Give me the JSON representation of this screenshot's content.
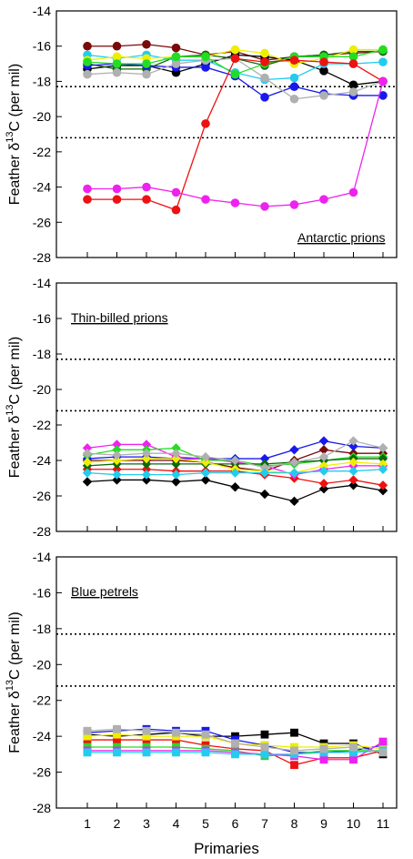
{
  "chart_data": [
    {
      "type": "line",
      "panel_label": "Antarctic prions",
      "ylabel_pre": "Feather δ",
      "ylabel_sup": "13",
      "ylabel_post": "C (per mil)",
      "ylim": [
        -28,
        -14
      ],
      "yticks": [
        -28,
        -26,
        -24,
        -22,
        -20,
        -18,
        -16,
        -14
      ],
      "reference_lines": [
        -18.3,
        -21.2
      ],
      "grid": false,
      "series": [
        {
          "color": "#7a0a0a",
          "marker": "circle",
          "values": [
            -16.0,
            -16.0,
            -15.9,
            -16.1,
            -16.5,
            -16.3,
            -16.8,
            -16.6,
            -16.5,
            -16.4,
            -16.3
          ]
        },
        {
          "color": "#000000",
          "marker": "circle",
          "values": [
            -17.3,
            -17.1,
            -17.1,
            -17.5,
            -17.0,
            -16.5,
            -16.6,
            -16.8,
            -17.4,
            -18.2,
            -18.0
          ]
        },
        {
          "color": "#0a6a0a",
          "marker": "circle",
          "values": [
            -17.0,
            -17.3,
            -17.3,
            -16.6,
            -16.5,
            -16.7,
            -17.1,
            -16.6,
            -16.5,
            -16.3,
            -16.3
          ]
        },
        {
          "color": "#1818ee",
          "marker": "circle",
          "values": [
            -17.1,
            -17.0,
            -17.1,
            -17.2,
            -17.2,
            -17.7,
            -18.9,
            -18.3,
            -18.7,
            -18.8,
            -18.8
          ]
        },
        {
          "color": "#22ccee",
          "marker": "circle",
          "values": [
            -16.5,
            -16.7,
            -16.5,
            -16.8,
            -16.8,
            -17.5,
            -17.9,
            -17.8,
            -17.0,
            -17.0,
            -16.9
          ]
        },
        {
          "color": "#b0b0b0",
          "marker": "circle",
          "values": [
            -17.6,
            -17.5,
            -17.6,
            -17.0,
            -16.8,
            -16.7,
            -17.8,
            -19.0,
            -18.8,
            -18.6,
            -18.0
          ]
        },
        {
          "color": "#eeee00",
          "marker": "circle",
          "values": [
            -16.8,
            -16.6,
            -16.7,
            -16.6,
            -16.6,
            -16.2,
            -16.4,
            -17.0,
            -16.7,
            -16.2,
            -16.2
          ]
        },
        {
          "color": "#22dd22",
          "marker": "circle",
          "values": [
            -16.9,
            -17.0,
            -17.0,
            -16.6,
            -16.6,
            -17.6,
            -17.0,
            -16.6,
            -16.6,
            -16.6,
            -16.2
          ]
        },
        {
          "color": "#ee1111",
          "marker": "circle",
          "values": [
            -24.7,
            -24.7,
            -24.7,
            -25.3,
            -20.4,
            -16.7,
            -16.9,
            -16.8,
            -16.9,
            -17.0,
            -18.0
          ]
        },
        {
          "color": "#ee22ee",
          "marker": "circle",
          "values": [
            -24.1,
            -24.1,
            -24.0,
            -24.3,
            -24.7,
            -24.9,
            -25.1,
            -25.0,
            -24.7,
            -24.3,
            -18.0
          ]
        }
      ]
    },
    {
      "type": "line",
      "panel_label": "Thin-billed prions",
      "ylabel_pre": "Feather δ",
      "ylabel_sup": "13",
      "ylabel_post": "C (per mil)",
      "ylim": [
        -28,
        -14
      ],
      "yticks": [
        -28,
        -26,
        -24,
        -22,
        -20,
        -18,
        -16,
        -14
      ],
      "reference_lines": [
        -18.3,
        -21.2
      ],
      "grid": false,
      "series": [
        {
          "color": "#000000",
          "marker": "diamond",
          "values": [
            -25.2,
            -25.1,
            -25.1,
            -25.2,
            -25.1,
            -25.5,
            -25.9,
            -26.3,
            -25.6,
            -25.4,
            -25.7
          ]
        },
        {
          "color": "#7a0a0a",
          "marker": "diamond",
          "values": [
            -24.0,
            -24.0,
            -24.0,
            -24.0,
            -24.1,
            -24.4,
            -24.6,
            -24.0,
            -23.4,
            -23.6,
            -23.6
          ]
        },
        {
          "color": "#1818ee",
          "marker": "diamond",
          "values": [
            -23.9,
            -23.8,
            -23.8,
            -23.9,
            -23.9,
            -23.9,
            -23.9,
            -23.4,
            -22.9,
            -23.2,
            -23.3
          ]
        },
        {
          "color": "#ee1111",
          "marker": "diamond",
          "values": [
            -24.5,
            -24.5,
            -24.5,
            -24.6,
            -24.6,
            -24.6,
            -24.8,
            -25.0,
            -25.3,
            -25.1,
            -25.4
          ]
        },
        {
          "color": "#ee22ee",
          "marker": "diamond",
          "values": [
            -23.3,
            -23.1,
            -23.1,
            -23.8,
            -23.9,
            -24.1,
            -24.3,
            -24.8,
            -24.5,
            -24.3,
            -24.3
          ]
        },
        {
          "color": "#22dd22",
          "marker": "diamond",
          "values": [
            -23.7,
            -23.4,
            -23.4,
            -23.3,
            -24.0,
            -24.0,
            -24.3,
            -24.2,
            -24.0,
            -23.8,
            -23.8
          ]
        },
        {
          "color": "#0a6a0a",
          "marker": "diamond",
          "values": [
            -24.3,
            -24.2,
            -24.2,
            -24.2,
            -24.2,
            -24.2,
            -24.2,
            -24.1,
            -24.0,
            -23.9,
            -23.9
          ]
        },
        {
          "color": "#eeee00",
          "marker": "diamond",
          "values": [
            -24.1,
            -24.0,
            -23.9,
            -23.9,
            -24.1,
            -24.5,
            -24.6,
            -24.7,
            -24.3,
            -24.1,
            -24.2
          ]
        },
        {
          "color": "#b0b0b0",
          "marker": "diamond",
          "values": [
            -23.6,
            -23.7,
            -23.6,
            -23.6,
            -23.8,
            -24.0,
            -24.4,
            -24.1,
            -23.8,
            -22.9,
            -23.3
          ]
        },
        {
          "color": "#22ccee",
          "marker": "diamond",
          "values": [
            -24.7,
            -24.8,
            -24.8,
            -24.8,
            -24.7,
            -24.7,
            -24.7,
            -24.7,
            -24.6,
            -24.6,
            -24.5
          ]
        }
      ]
    },
    {
      "type": "line",
      "panel_label": "Blue petrels",
      "ylabel_pre": "Feather δ",
      "ylabel_sup": "13",
      "ylabel_post": "C (per mil)",
      "xlabel": "Primaries",
      "categories": [
        "1",
        "2",
        "3",
        "4",
        "5",
        "6",
        "7",
        "8",
        "9",
        "10",
        "11"
      ],
      "ylim": [
        -28,
        -14
      ],
      "yticks": [
        -28,
        -26,
        -24,
        -22,
        -20,
        -18,
        -16,
        -14
      ],
      "reference_lines": [
        -18.3,
        -21.2
      ],
      "grid": false,
      "series": [
        {
          "color": "#000000",
          "marker": "square",
          "values": [
            -23.9,
            -24.0,
            -23.9,
            -23.8,
            -24.0,
            -24.0,
            -23.9,
            -23.8,
            -24.4,
            -24.4,
            -25.0
          ]
        },
        {
          "color": "#1818ee",
          "marker": "square",
          "values": [
            -23.8,
            -23.7,
            -23.6,
            -23.7,
            -23.7,
            -24.2,
            -24.5,
            -24.9,
            -24.9,
            -24.8,
            -24.5
          ]
        },
        {
          "color": "#ee1111",
          "marker": "square",
          "values": [
            -24.2,
            -24.2,
            -24.2,
            -24.2,
            -24.5,
            -24.7,
            -24.8,
            -25.6,
            -25.2,
            -25.2,
            -24.8
          ]
        },
        {
          "color": "#eeee00",
          "marker": "square",
          "values": [
            -24.0,
            -23.9,
            -24.0,
            -24.0,
            -24.0,
            -24.4,
            -24.5,
            -24.6,
            -24.6,
            -24.5,
            -24.7
          ]
        },
        {
          "color": "#22dd22",
          "marker": "square",
          "values": [
            -24.6,
            -24.6,
            -24.6,
            -24.6,
            -24.7,
            -24.8,
            -25.1,
            -25.0,
            -24.8,
            -24.8,
            -24.8
          ]
        },
        {
          "color": "#ee22ee",
          "marker": "square",
          "values": [
            -24.8,
            -24.8,
            -24.8,
            -24.8,
            -24.8,
            -24.9,
            -25.0,
            -25.1,
            -25.3,
            -25.3,
            -24.3
          ]
        },
        {
          "color": "#22ccee",
          "marker": "square",
          "values": [
            -24.9,
            -24.9,
            -24.9,
            -24.9,
            -24.9,
            -25.0,
            -25.0,
            -25.0,
            -24.9,
            -24.9,
            -24.8
          ]
        },
        {
          "color": "#b0b0b0",
          "marker": "square",
          "values": [
            -23.7,
            -23.6,
            -23.7,
            -23.8,
            -23.9,
            -24.4,
            -24.6,
            -24.8,
            -24.7,
            -24.6,
            -24.9
          ]
        }
      ]
    }
  ]
}
